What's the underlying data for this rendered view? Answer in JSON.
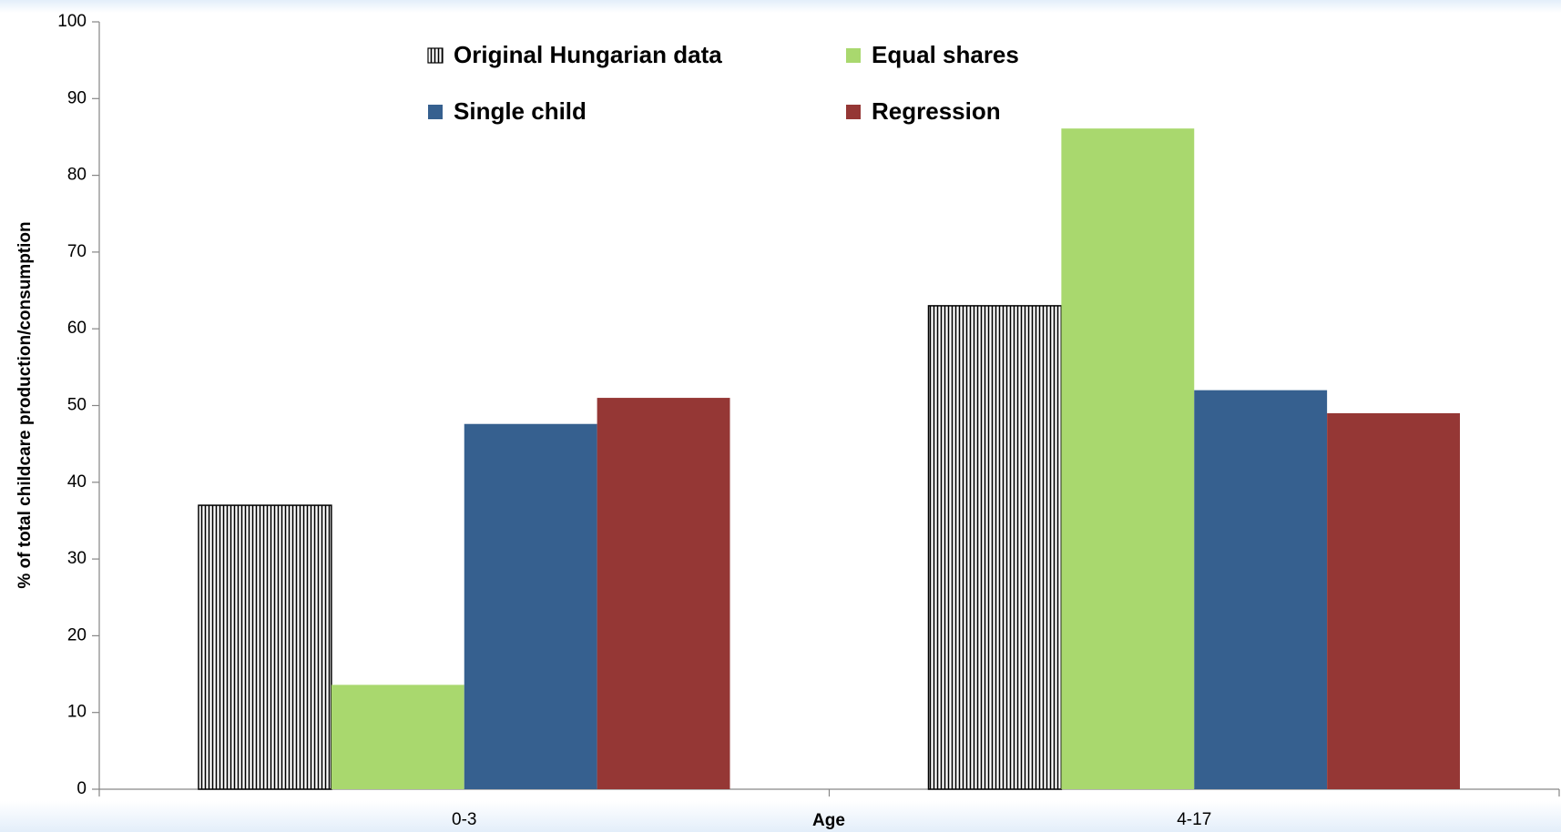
{
  "chart_data": {
    "type": "bar",
    "categories": [
      "0-3",
      "4-17"
    ],
    "series": [
      {
        "name": "Original Hungarian data",
        "color": "#000000",
        "hatch": "vertical",
        "values": [
          37,
          63
        ]
      },
      {
        "name": "Equal shares",
        "color": "#a9d86e",
        "values": [
          13.6,
          86.1
        ]
      },
      {
        "name": "Single child",
        "color": "#36608f",
        "values": [
          47.6,
          52
        ]
      },
      {
        "name": "Regression",
        "color": "#953735",
        "values": [
          51,
          49
        ]
      }
    ],
    "xlabel": "Age",
    "ylabel": "% of total childcare production/consumption",
    "ylim": [
      0,
      100
    ],
    "yticks": [
      0,
      10,
      20,
      30,
      40,
      50,
      60,
      70,
      80,
      90,
      100
    ],
    "legend": "top"
  }
}
